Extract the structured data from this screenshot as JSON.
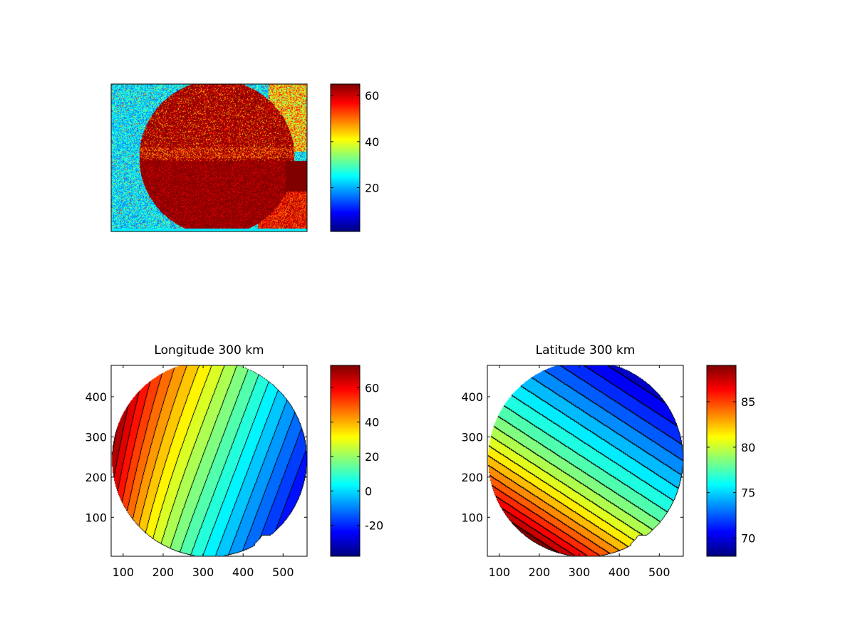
{
  "colors": {
    "background": "#ffffff",
    "axes_frame": "#000000",
    "contour_line": "#000000",
    "colormap": "jet"
  },
  "chart_data": [
    {
      "id": "raw-image",
      "type": "heatmap",
      "title": "",
      "xlabel": "",
      "ylabel": "",
      "axis_ticks_visible": false,
      "content": "noisy intensity image: red disk (~60) on cyan background (~25), lower-right region saturated",
      "colorbar": {
        "range": [
          1,
          65
        ],
        "ticks": [
          20,
          40,
          60
        ],
        "colormap": "jet"
      }
    },
    {
      "id": "longitude",
      "type": "heatmap",
      "subtype": "filled-contour",
      "title": "Longitude 300 km",
      "xlabel": "",
      "ylabel": "",
      "xlim": [
        70,
        560
      ],
      "ylim": [
        3,
        478
      ],
      "xticks": [
        100,
        200,
        300,
        400,
        500
      ],
      "yticks": [
        100,
        200,
        300,
        400
      ],
      "disk": {
        "center": [
          316,
          245
        ],
        "radius": 244
      },
      "field_range": [
        -38,
        73
      ],
      "contour_levels": [
        -30,
        -25,
        -20,
        -15,
        -10,
        -5,
        0,
        5,
        10,
        15,
        20,
        25,
        30,
        35,
        40,
        45,
        50,
        55,
        60,
        65,
        70
      ],
      "grid": false,
      "colorbar": {
        "range": [
          -38,
          73
        ],
        "ticks": [
          -20,
          0,
          20,
          40,
          60
        ],
        "colormap": "jet"
      }
    },
    {
      "id": "latitude",
      "type": "heatmap",
      "subtype": "filled-contour",
      "title": "Latitude 300 km",
      "xlabel": "",
      "ylabel": "",
      "xlim": [
        70,
        560
      ],
      "ylim": [
        3,
        478
      ],
      "xticks": [
        100,
        200,
        300,
        400,
        500
      ],
      "yticks": [
        100,
        200,
        300,
        400
      ],
      "disk": {
        "center": [
          316,
          245
        ],
        "radius": 244
      },
      "field_range": [
        68,
        89
      ],
      "contour_levels": [
        69,
        70,
        71,
        72,
        73,
        74,
        75,
        76,
        77,
        78,
        79,
        80,
        81,
        82,
        83,
        84,
        85,
        86,
        87,
        88
      ],
      "grid": false,
      "colorbar": {
        "range": [
          68,
          89
        ],
        "ticks": [
          70,
          75,
          80,
          85
        ],
        "colormap": "jet"
      }
    }
  ]
}
